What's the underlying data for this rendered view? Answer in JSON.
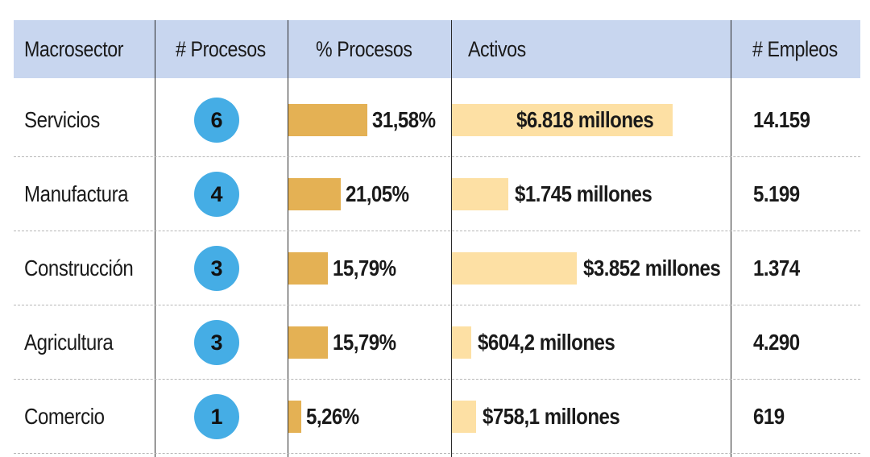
{
  "header": {
    "macrosector": "Macrosector",
    "procesos": "# Procesos",
    "pct_procesos": "% Procesos",
    "activos": "Activos",
    "empleos": "# Empleos"
  },
  "colors": {
    "header_bg": "#c8d6ef",
    "circle": "#45ade5",
    "pct_bar": "#e4b154",
    "activos_bar": "#fde0a4"
  },
  "chart_data": {
    "type": "table",
    "columns": [
      "Macrosector",
      "# Procesos",
      "% Procesos",
      "Activos",
      "# Empleos"
    ],
    "rows": [
      {
        "sector": "Servicios",
        "procesos": 6,
        "procesos_label": "6",
        "pct": 31.58,
        "pct_label": "31,58%",
        "activos_millones": 6818,
        "activos_label": "$6.818 millones",
        "empleos_label": "14.159"
      },
      {
        "sector": "Manufactura",
        "procesos": 4,
        "procesos_label": "4",
        "pct": 21.05,
        "pct_label": "21,05%",
        "activos_millones": 1745,
        "activos_label": "$1.745 millones",
        "empleos_label": "5.199"
      },
      {
        "sector": "Construcción",
        "procesos": 3,
        "procesos_label": "3",
        "pct": 15.79,
        "pct_label": "15,79%",
        "activos_millones": 3852,
        "activos_label": "$3.852 millones",
        "empleos_label": "1.374"
      },
      {
        "sector": "Agricultura",
        "procesos": 3,
        "procesos_label": "3",
        "pct": 15.79,
        "pct_label": "15,79%",
        "activos_millones": 604.2,
        "activos_label": "$604,2 millones",
        "empleos_label": "4.290"
      },
      {
        "sector": "Comercio",
        "procesos": 1,
        "procesos_label": "1",
        "pct": 5.26,
        "pct_label": "5,26%",
        "activos_millones": 758.1,
        "activos_label": "$758,1 millones",
        "empleos_label": "619"
      }
    ]
  }
}
